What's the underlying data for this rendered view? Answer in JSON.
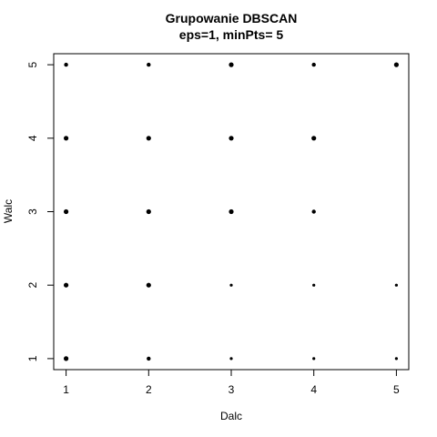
{
  "chart_data": {
    "type": "scatter",
    "title": "Grupowanie DBSCAN",
    "subtitle": "eps=1, minPts= 5",
    "xlabel": "Dalc",
    "ylabel": "Walc",
    "xlim": [
      0.85,
      5.15
    ],
    "ylim": [
      0.85,
      5.15
    ],
    "x_ticks": [
      1,
      2,
      3,
      4,
      5
    ],
    "y_ticks": [
      1,
      2,
      3,
      4,
      5
    ],
    "grid": false,
    "legend": "none",
    "point_color": "#000000",
    "points": [
      {
        "x": 1,
        "y": 1,
        "weight": 3
      },
      {
        "x": 1,
        "y": 2,
        "weight": 3
      },
      {
        "x": 1,
        "y": 3,
        "weight": 3
      },
      {
        "x": 1,
        "y": 4,
        "weight": 3
      },
      {
        "x": 1,
        "y": 5,
        "weight": 2
      },
      {
        "x": 2,
        "y": 1,
        "weight": 2
      },
      {
        "x": 2,
        "y": 2,
        "weight": 3
      },
      {
        "x": 2,
        "y": 3,
        "weight": 3
      },
      {
        "x": 2,
        "y": 4,
        "weight": 3
      },
      {
        "x": 2,
        "y": 5,
        "weight": 2
      },
      {
        "x": 3,
        "y": 1,
        "weight": 1
      },
      {
        "x": 3,
        "y": 2,
        "weight": 1
      },
      {
        "x": 3,
        "y": 3,
        "weight": 3
      },
      {
        "x": 3,
        "y": 4,
        "weight": 3
      },
      {
        "x": 3,
        "y": 5,
        "weight": 3
      },
      {
        "x": 4,
        "y": 1,
        "weight": 1
      },
      {
        "x": 4,
        "y": 2,
        "weight": 1
      },
      {
        "x": 4,
        "y": 3,
        "weight": 2
      },
      {
        "x": 4,
        "y": 4,
        "weight": 3
      },
      {
        "x": 4,
        "y": 5,
        "weight": 2
      },
      {
        "x": 5,
        "y": 1,
        "weight": 1
      },
      {
        "x": 5,
        "y": 2,
        "weight": 1
      },
      {
        "x": 5,
        "y": 5,
        "weight": 3
      }
    ]
  }
}
